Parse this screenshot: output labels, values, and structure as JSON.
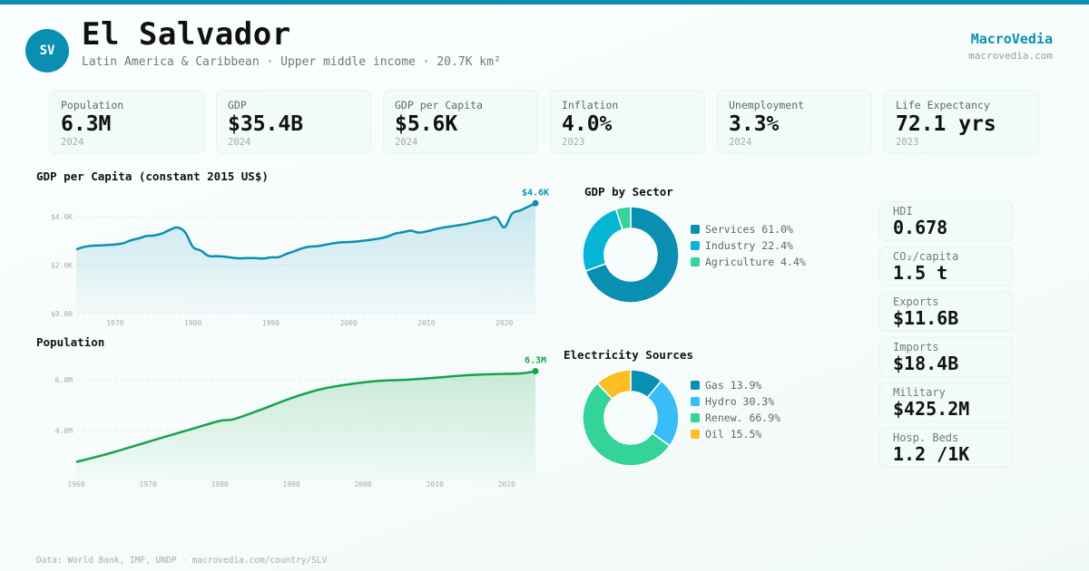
{
  "header": {
    "avatar_text": "SV",
    "title": "El Salvador",
    "subtitle": "Latin America & Caribbean · Upper middle income · 20.7K km²",
    "brand": "MacroVedia",
    "brand_url": "macrovedia.com"
  },
  "colors": {
    "accent": "#0a8fb3",
    "population_line": "#16a34a"
  },
  "kpis": [
    {
      "label": "Population",
      "value": "6.3M",
      "year": "2024"
    },
    {
      "label": "GDP",
      "value": "$35.4B",
      "year": "2024"
    },
    {
      "label": "GDP per Capita",
      "value": "$5.6K",
      "year": "2024"
    },
    {
      "label": "Inflation",
      "value": "4.0%",
      "year": "2023"
    },
    {
      "label": "Unemployment",
      "value": "3.3%",
      "year": "2024"
    },
    {
      "label": "Life Expectancy",
      "value": "72.1 yrs",
      "year": "2023"
    }
  ],
  "side_stats": [
    {
      "label": "HDI",
      "value": "0.678"
    },
    {
      "label": "CO₂/capita",
      "value": "1.5 t"
    },
    {
      "label": "Exports",
      "value": "$11.6B"
    },
    {
      "label": "Imports",
      "value": "$18.4B"
    },
    {
      "label": "Military",
      "value": "$425.2M"
    },
    {
      "label": "Hosp. Beds",
      "value": "1.2 /1K"
    }
  ],
  "footer": "Data: World Bank, IMF, UNDP · macrovedia.com/country/SLV",
  "chart_data": [
    {
      "id": "gdp_per_capita",
      "type": "area",
      "title": "GDP per Capita (constant 2015 US$)",
      "xlabel": "",
      "ylabel": "",
      "xlim": [
        1965,
        2024
      ],
      "ylim": [
        0,
        4400
      ],
      "yticks": [
        0,
        2000,
        4000
      ],
      "ytick_labels": [
        "$0.00",
        "$2.0K",
        "$4.0K"
      ],
      "xticks": [
        1970,
        1980,
        1990,
        2000,
        2010,
        2020
      ],
      "grid": true,
      "end_label": "$4.6K",
      "color": "#0a8fb3",
      "x": [
        1965,
        1966,
        1967,
        1968,
        1969,
        1970,
        1971,
        1972,
        1973,
        1974,
        1975,
        1976,
        1977,
        1978,
        1979,
        1980,
        1981,
        1982,
        1983,
        1984,
        1985,
        1986,
        1987,
        1988,
        1989,
        1990,
        1991,
        1992,
        1993,
        1994,
        1995,
        1996,
        1997,
        1998,
        1999,
        2000,
        2001,
        2002,
        2003,
        2004,
        2005,
        2006,
        2007,
        2008,
        2009,
        2010,
        2011,
        2012,
        2013,
        2014,
        2015,
        2016,
        2017,
        2018,
        2019,
        2020,
        2021,
        2022,
        2023,
        2024
      ],
      "values": [
        2650,
        2750,
        2800,
        2810,
        2830,
        2850,
        2900,
        3020,
        3100,
        3200,
        3220,
        3300,
        3450,
        3550,
        3350,
        2750,
        2600,
        2380,
        2370,
        2350,
        2310,
        2280,
        2290,
        2290,
        2270,
        2320,
        2330,
        2460,
        2570,
        2690,
        2760,
        2780,
        2840,
        2900,
        2940,
        2950,
        2970,
        3010,
        3050,
        3100,
        3180,
        3300,
        3360,
        3420,
        3340,
        3390,
        3470,
        3540,
        3590,
        3640,
        3690,
        3760,
        3830,
        3890,
        3960,
        3560,
        4120,
        4250,
        4400,
        4550
      ]
    },
    {
      "id": "population",
      "type": "area",
      "title": "Population",
      "xlabel": "",
      "ylabel": "",
      "xlim": [
        1960,
        2024
      ],
      "ylim": [
        2.0,
        6.6
      ],
      "yticks": [
        4.0,
        6.0
      ],
      "ytick_labels": [
        "4.0M",
        "6.0M"
      ],
      "xticks": [
        1960,
        1970,
        1980,
        1990,
        2000,
        2010,
        2020
      ],
      "grid": true,
      "end_label": "6.3M",
      "color": "#16a34a",
      "x": [
        1960,
        1964,
        1968,
        1972,
        1976,
        1980,
        1982,
        1986,
        1990,
        1994,
        1998,
        2002,
        2006,
        2010,
        2014,
        2018,
        2022,
        2024
      ],
      "values": [
        2.76,
        3.05,
        3.38,
        3.72,
        4.05,
        4.38,
        4.45,
        4.85,
        5.28,
        5.62,
        5.82,
        5.95,
        6.0,
        6.08,
        6.17,
        6.22,
        6.25,
        6.34
      ]
    },
    {
      "id": "gdp_by_sector",
      "type": "pie",
      "donut": true,
      "title": "GDP by Sector",
      "slices": [
        {
          "label": "Services",
          "value": 61.0,
          "display": "Services 61.0%",
          "color": "#0a8fb3"
        },
        {
          "label": "Industry",
          "value": 22.4,
          "display": "Industry 22.4%",
          "color": "#06b6d4"
        },
        {
          "label": "Agriculture",
          "value": 4.4,
          "display": "Agriculture 4.4%",
          "color": "#34d399"
        }
      ]
    },
    {
      "id": "electricity_sources",
      "type": "pie",
      "donut": true,
      "title": "Electricity Sources",
      "slices": [
        {
          "label": "Gas",
          "value": 13.9,
          "display": "Gas 13.9%",
          "color": "#0a8fb3"
        },
        {
          "label": "Hydro",
          "value": 30.3,
          "display": "Hydro 30.3%",
          "color": "#38bdf8"
        },
        {
          "label": "Renew.",
          "value": 66.9,
          "display": "Renew. 66.9%",
          "color": "#34d399"
        },
        {
          "label": "Oil",
          "value": 15.5,
          "display": "Oil 15.5%",
          "color": "#fbbf24"
        }
      ]
    }
  ]
}
